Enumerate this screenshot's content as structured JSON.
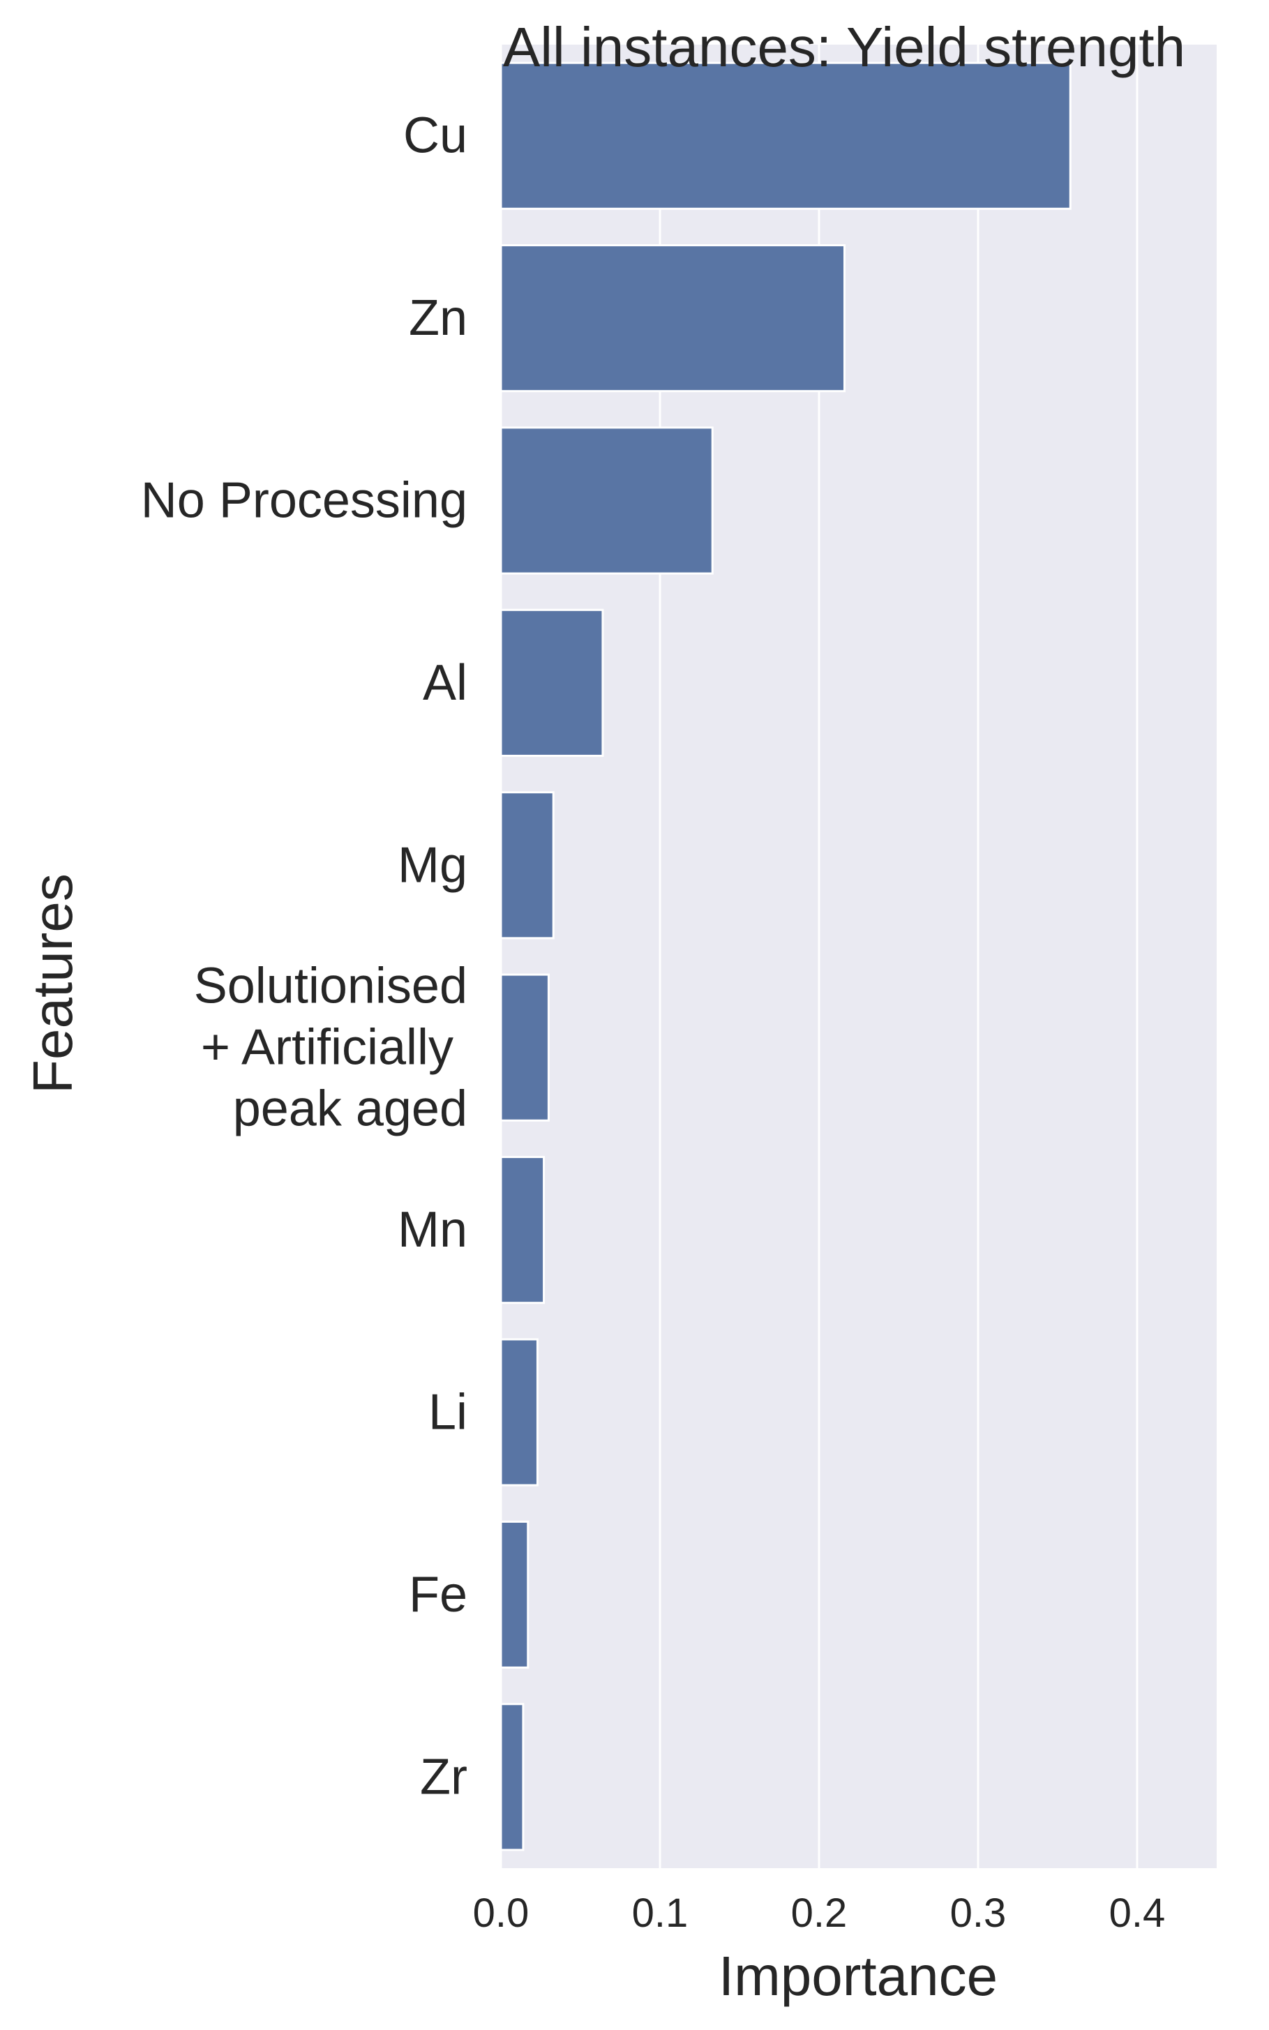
{
  "chart_data": {
    "type": "bar",
    "orientation": "horizontal",
    "title": "All instances: Yield strength",
    "xlabel": "Importance",
    "ylabel": "Features",
    "categories": [
      "Cu",
      "Zn",
      "No Processing",
      "Al",
      "Mg",
      "Solutionised\n + Artificially \n peak aged",
      "Mn",
      "Li",
      "Fe",
      "Zr"
    ],
    "values": [
      0.358,
      0.216,
      0.133,
      0.064,
      0.033,
      0.03,
      0.027,
      0.023,
      0.017,
      0.014
    ],
    "xlim": [
      0,
      0.45
    ],
    "xticks": [
      "0.0",
      "0.1",
      "0.2",
      "0.3",
      "0.4"
    ],
    "grid": true,
    "colors": {
      "bar": "#5975a4",
      "plot_background": "#eaeaf2",
      "grid": "#ffffff",
      "text": "#262626"
    }
  }
}
